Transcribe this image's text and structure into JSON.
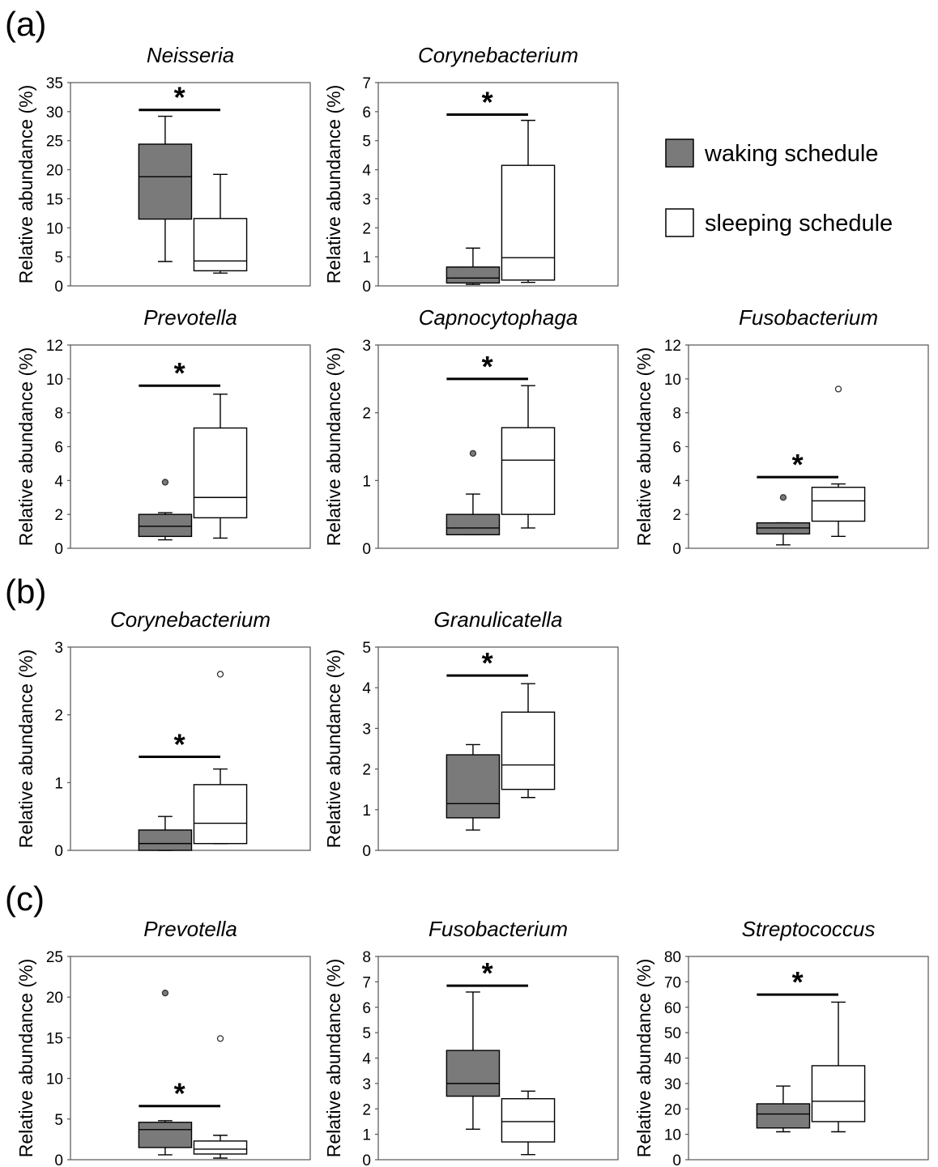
{
  "panels": [
    {
      "label": "(a)"
    },
    {
      "label": "(b)"
    },
    {
      "label": "(c)"
    }
  ],
  "legend": {
    "entries": [
      {
        "label": "waking schedule",
        "fill": "#7a7a7a"
      },
      {
        "label": "sleeping schedule",
        "fill": "#ffffff"
      }
    ]
  },
  "colors": {
    "waking": "#7a7a7a",
    "sleeping": "#ffffff",
    "outline": "#000000",
    "frame": "#555555"
  },
  "chart_data": [
    {
      "type": "box",
      "panel": "(a)",
      "title": "Neisseria",
      "ylabel": "Relative abundance (%)",
      "ylim": [
        0,
        35
      ],
      "yticks": [
        0,
        5,
        10,
        15,
        20,
        25,
        30,
        35
      ],
      "significance": "*",
      "sig_y": 30.3,
      "series": [
        {
          "name": "waking schedule",
          "whisker_low": 4.2,
          "q1": 11.5,
          "median": 18.8,
          "q3": 24.4,
          "whisker_high": 29.2,
          "outliers": []
        },
        {
          "name": "sleeping schedule",
          "whisker_low": 2.2,
          "q1": 2.6,
          "median": 4.3,
          "q3": 11.6,
          "whisker_high": 19.2,
          "outliers": []
        }
      ]
    },
    {
      "type": "box",
      "panel": "(a)",
      "title": "Corynebacterium",
      "ylabel": "Relative abundance (%)",
      "ylim": [
        0,
        7
      ],
      "yticks": [
        0,
        1,
        2,
        3,
        4,
        5,
        6,
        7
      ],
      "significance": "*",
      "sig_y": 5.9,
      "series": [
        {
          "name": "waking schedule",
          "whisker_low": 0.05,
          "q1": 0.1,
          "median": 0.27,
          "q3": 0.65,
          "whisker_high": 1.3,
          "outliers": []
        },
        {
          "name": "sleeping schedule",
          "whisker_low": 0.12,
          "q1": 0.2,
          "median": 0.97,
          "q3": 4.15,
          "whisker_high": 5.7,
          "outliers": []
        }
      ]
    },
    {
      "type": "box",
      "panel": "(a)",
      "title": "Prevotella",
      "ylabel": "Relative abundance (%)",
      "ylim": [
        0,
        12
      ],
      "yticks": [
        0,
        2,
        4,
        6,
        8,
        10,
        12
      ],
      "significance": "*",
      "sig_y": 9.6,
      "series": [
        {
          "name": "waking schedule",
          "whisker_low": 0.5,
          "q1": 0.7,
          "median": 1.3,
          "q3": 2.0,
          "whisker_high": 2.1,
          "outliers": [
            3.9
          ]
        },
        {
          "name": "sleeping schedule",
          "whisker_low": 0.6,
          "q1": 1.8,
          "median": 3.0,
          "q3": 7.1,
          "whisker_high": 9.1,
          "outliers": []
        }
      ]
    },
    {
      "type": "box",
      "panel": "(a)",
      "title": "Capnocytophaga",
      "ylabel": "Relative abundance (%)",
      "ylim": [
        0,
        3
      ],
      "yticks": [
        0,
        1,
        2,
        3
      ],
      "significance": "*",
      "sig_y": 2.5,
      "series": [
        {
          "name": "waking schedule",
          "whisker_low": 0.2,
          "q1": 0.2,
          "median": 0.3,
          "q3": 0.5,
          "whisker_high": 0.8,
          "outliers": [
            1.4
          ]
        },
        {
          "name": "sleeping schedule",
          "whisker_low": 0.3,
          "q1": 0.5,
          "median": 1.3,
          "q3": 1.78,
          "whisker_high": 2.4,
          "outliers": []
        }
      ]
    },
    {
      "type": "box",
      "panel": "(a)",
      "title": "Fusobacterium",
      "ylabel": "Relative abundance (%)",
      "ylim": [
        0,
        12
      ],
      "yticks": [
        0,
        2,
        4,
        6,
        8,
        10,
        12
      ],
      "significance": "*",
      "sig_y": 4.2,
      "series": [
        {
          "name": "waking schedule",
          "whisker_low": 0.2,
          "q1": 0.85,
          "median": 1.2,
          "q3": 1.5,
          "whisker_high": 1.5,
          "outliers": [
            3.0
          ]
        },
        {
          "name": "sleeping schedule",
          "whisker_low": 0.7,
          "q1": 1.6,
          "median": 2.8,
          "q3": 3.6,
          "whisker_high": 3.8,
          "outliers": [
            9.4
          ]
        }
      ]
    },
    {
      "type": "box",
      "panel": "(b)",
      "title": "Corynebacterium",
      "ylabel": "Relative abundance (%)",
      "ylim": [
        0,
        3
      ],
      "yticks": [
        0,
        1,
        2,
        3
      ],
      "significance": "*",
      "sig_y": 1.38,
      "series": [
        {
          "name": "waking schedule",
          "whisker_low": 0.0,
          "q1": 0.0,
          "median": 0.1,
          "q3": 0.3,
          "whisker_high": 0.5,
          "outliers": []
        },
        {
          "name": "sleeping schedule",
          "whisker_low": 0.1,
          "q1": 0.1,
          "median": 0.4,
          "q3": 0.97,
          "whisker_high": 1.2,
          "outliers": [
            2.6
          ]
        }
      ]
    },
    {
      "type": "box",
      "panel": "(b)",
      "title": "Granulicatella",
      "ylabel": "Relative abundance (%)",
      "ylim": [
        0,
        5
      ],
      "yticks": [
        0,
        1,
        2,
        3,
        4,
        5
      ],
      "significance": "*",
      "sig_y": 4.3,
      "series": [
        {
          "name": "waking schedule",
          "whisker_low": 0.5,
          "q1": 0.8,
          "median": 1.15,
          "q3": 2.35,
          "whisker_high": 2.6,
          "outliers": []
        },
        {
          "name": "sleeping schedule",
          "whisker_low": 1.3,
          "q1": 1.5,
          "median": 2.1,
          "q3": 3.4,
          "whisker_high": 4.1,
          "outliers": []
        }
      ]
    },
    {
      "type": "box",
      "panel": "(c)",
      "title": "Prevotella",
      "ylabel": "Relative abundance (%)",
      "ylim": [
        0,
        25
      ],
      "yticks": [
        0,
        5,
        10,
        15,
        20,
        25
      ],
      "significance": "*",
      "sig_y": 6.6,
      "series": [
        {
          "name": "waking schedule",
          "whisker_low": 0.6,
          "q1": 1.5,
          "median": 3.7,
          "q3": 4.6,
          "whisker_high": 4.8,
          "outliers": [
            20.5
          ]
        },
        {
          "name": "sleeping schedule",
          "whisker_low": 0.2,
          "q1": 0.7,
          "median": 1.3,
          "q3": 2.3,
          "whisker_high": 3.0,
          "outliers": [
            14.9
          ]
        }
      ]
    },
    {
      "type": "box",
      "panel": "(c)",
      "title": "Fusobacterium",
      "ylabel": "Relative abundance (%)",
      "ylim": [
        0,
        8
      ],
      "yticks": [
        0,
        1,
        2,
        3,
        4,
        5,
        6,
        7,
        8
      ],
      "significance": "*",
      "sig_y": 6.85,
      "series": [
        {
          "name": "waking schedule",
          "whisker_low": 1.2,
          "q1": 2.5,
          "median": 3.0,
          "q3": 4.3,
          "whisker_high": 6.6,
          "outliers": []
        },
        {
          "name": "sleeping schedule",
          "whisker_low": 0.2,
          "q1": 0.7,
          "median": 1.5,
          "q3": 2.4,
          "whisker_high": 2.7,
          "outliers": []
        }
      ]
    },
    {
      "type": "box",
      "panel": "(c)",
      "title": "Streptococcus",
      "ylabel": "Relative abundance (%)",
      "ylim": [
        0,
        80
      ],
      "yticks": [
        0,
        10,
        20,
        30,
        40,
        50,
        60,
        70,
        80
      ],
      "significance": "*",
      "sig_y": 65,
      "series": [
        {
          "name": "waking schedule",
          "whisker_low": 11,
          "q1": 12.5,
          "median": 18,
          "q3": 22,
          "whisker_high": 29,
          "outliers": []
        },
        {
          "name": "sleeping schedule",
          "whisker_low": 11,
          "q1": 15,
          "median": 23,
          "q3": 37,
          "whisker_high": 62,
          "outliers": []
        }
      ]
    }
  ]
}
